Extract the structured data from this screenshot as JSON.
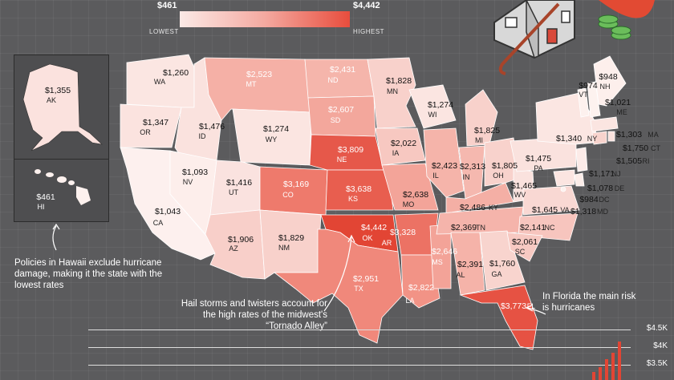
{
  "legend": {
    "low_value": "$461",
    "low_label": "LOWEST",
    "high_value": "$4,442",
    "high_label": "HIGHEST"
  },
  "colors": {
    "background": "#5b5b5d",
    "lowest": "#fbe9e6",
    "mid": "#f4a9a0",
    "highest": "#e84d3d"
  },
  "states": [
    {
      "abbr": "WA",
      "value": "$1,260"
    },
    {
      "abbr": "OR",
      "value": "$1,347"
    },
    {
      "abbr": "CA",
      "value": "$1,043"
    },
    {
      "abbr": "ID",
      "value": "$1,476"
    },
    {
      "abbr": "NV",
      "value": "$1,093"
    },
    {
      "abbr": "MT",
      "value": "$2,523"
    },
    {
      "abbr": "WY",
      "value": "$1,274"
    },
    {
      "abbr": "UT",
      "value": "$1,416"
    },
    {
      "abbr": "AZ",
      "value": "$1,906"
    },
    {
      "abbr": "CO",
      "value": "$3,169"
    },
    {
      "abbr": "NM",
      "value": "$1,829"
    },
    {
      "abbr": "ND",
      "value": "$2,431"
    },
    {
      "abbr": "SD",
      "value": "$2,607"
    },
    {
      "abbr": "NE",
      "value": "$3,809"
    },
    {
      "abbr": "KS",
      "value": "$3,638"
    },
    {
      "abbr": "OK",
      "value": "$4,442"
    },
    {
      "abbr": "TX",
      "value": "$2,951"
    },
    {
      "abbr": "MN",
      "value": "$1,828"
    },
    {
      "abbr": "IA",
      "value": "$2,022"
    },
    {
      "abbr": "MO",
      "value": "$2,638"
    },
    {
      "abbr": "AR",
      "value": "$3,328"
    },
    {
      "abbr": "LA",
      "value": "$2,822"
    },
    {
      "abbr": "WI",
      "value": "$1,274"
    },
    {
      "abbr": "IL",
      "value": "$2,423"
    },
    {
      "abbr": "MS",
      "value": "$2,646"
    },
    {
      "abbr": "MI",
      "value": "$1,825"
    },
    {
      "abbr": "IN",
      "value": "$2,313"
    },
    {
      "abbr": "KY",
      "value": "$2,486"
    },
    {
      "abbr": "TN",
      "value": "$2,369"
    },
    {
      "abbr": "AL",
      "value": "$2,391"
    },
    {
      "abbr": "OH",
      "value": "$1,805"
    },
    {
      "abbr": "GA",
      "value": "$1,760"
    },
    {
      "abbr": "FL",
      "value": "$3,773"
    },
    {
      "abbr": "WV",
      "value": "$1,465"
    },
    {
      "abbr": "VA",
      "value": "$1,645"
    },
    {
      "abbr": "NC",
      "value": "$2,141"
    },
    {
      "abbr": "SC",
      "value": "$2,061"
    },
    {
      "abbr": "PA",
      "value": "$1,475"
    },
    {
      "abbr": "NY",
      "value": "$1,340"
    },
    {
      "abbr": "VT",
      "value": "$974"
    },
    {
      "abbr": "NH",
      "value": "$948"
    },
    {
      "abbr": "ME",
      "value": "$1,021"
    },
    {
      "abbr": "MA",
      "value": "$1,303"
    },
    {
      "abbr": "CT",
      "value": "$1,750"
    },
    {
      "abbr": "RI",
      "value": "$1,505"
    },
    {
      "abbr": "NJ",
      "value": "$1,171"
    },
    {
      "abbr": "DE",
      "value": "$1,078"
    },
    {
      "abbr": "DC",
      "value": "$984"
    },
    {
      "abbr": "MD",
      "value": "$1,318"
    },
    {
      "abbr": "AK",
      "value": "$1,355"
    },
    {
      "abbr": "HI",
      "value": "$461"
    }
  ],
  "notes": {
    "hawaii": "Policies in Hawaii exclude hurricane damage, making it the state with the lowest rates",
    "tornado": "Hail storms and twisters account for the high rates of the midwest's “Tornado Alley”",
    "florida": "In Florida the main risk is hurricanes"
  },
  "scale": {
    "labels": [
      "$4.5K",
      "$4K",
      "$3.5K"
    ]
  }
}
